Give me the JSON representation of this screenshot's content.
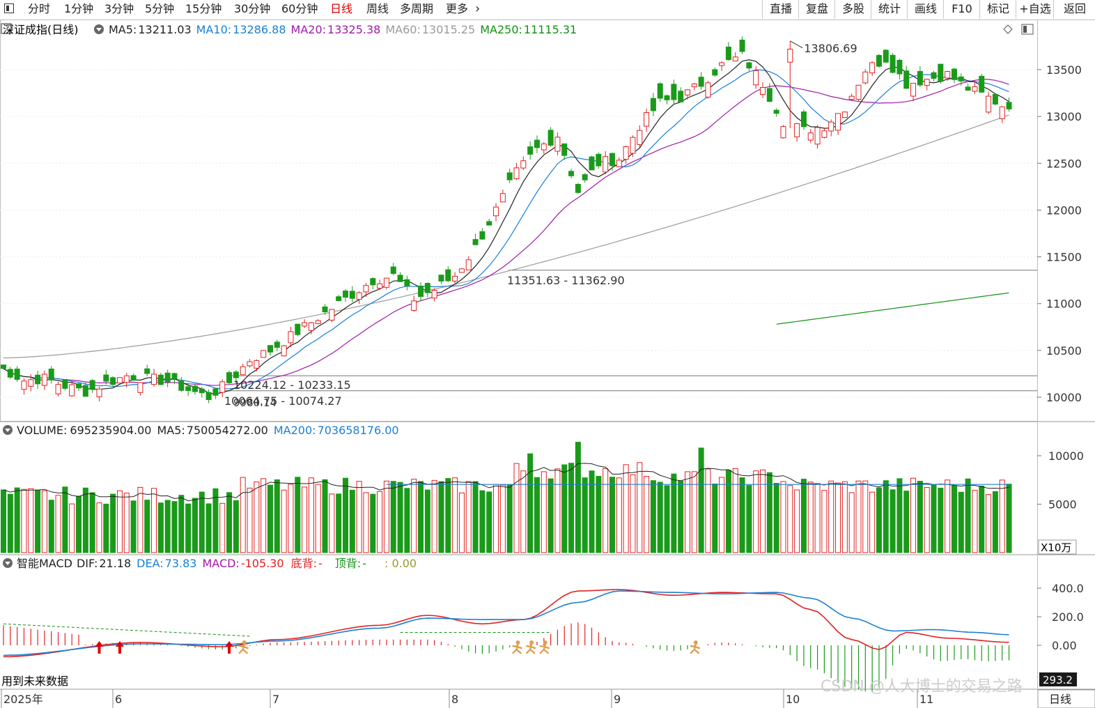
{
  "toolbar": {
    "left_tabs": [
      "分时",
      "1分钟",
      "3分钟",
      "5分钟",
      "15分钟",
      "30分钟",
      "60分钟",
      "日线",
      "周线",
      "多周期",
      "更多"
    ],
    "active_tab": "日线",
    "right_buttons": [
      "直播",
      "复盘",
      "多股",
      "统计",
      "画线",
      "F10",
      "标记",
      "+自选",
      "返回"
    ]
  },
  "price_panel": {
    "title": "深证成指(日线)",
    "ma_legend": [
      {
        "label": "MA5:",
        "value": "13211.03",
        "color": "#222222"
      },
      {
        "label": "MA10:",
        "value": "13286.88",
        "color": "#1a7fd4"
      },
      {
        "label": "MA20:",
        "value": "13325.38",
        "color": "#a01aa8"
      },
      {
        "label": "MA60:",
        "value": "13015.25",
        "color": "#9a9a9a"
      },
      {
        "label": "MA250:",
        "value": "11115.31",
        "color": "#119211"
      }
    ],
    "y_ticks": [
      "13500",
      "13000",
      "12500",
      "12000",
      "11500",
      "11000",
      "10500",
      "10000"
    ],
    "annotations": {
      "high": "13806.69",
      "gap1": "11351.63 - 11362.90",
      "gap2": "10224.12 - 10233.15",
      "gap3": "10064.75 - 10074.27",
      "low": "9980.14"
    }
  },
  "volume_panel": {
    "title": "VOLUME:",
    "value": "695235904.00",
    "ma5_label": "MA5:",
    "ma5_value": "750054272.00",
    "ma200_label": "MA200:",
    "ma200_value": "703658176.00",
    "y_ticks": [
      "10000",
      "5000"
    ],
    "unit": "X10万"
  },
  "macd_panel": {
    "title": "智能MACD",
    "dif_label": "DIF:",
    "dif_value": "21.18",
    "dea_label": "DEA:",
    "dea_value": "73.83",
    "macd_label": "MACD:",
    "macd_value": "-105.30",
    "bottom_div_label": "底背:",
    "bottom_div_value": "-",
    "top_div_label": "顶背:",
    "top_div_value": "-",
    "extra_value": ": 0.00",
    "y_ticks": [
      "400.0",
      "200.0",
      "0.00"
    ],
    "current_value": "293.2",
    "footnote": "用到未来数据"
  },
  "x_axis": {
    "labels": [
      "2025年",
      "6",
      "7",
      "8",
      "9",
      "10",
      "11"
    ],
    "period_label": "日线"
  },
  "watermark": "CSDN @人大博士的交易之路",
  "colors": {
    "up": "#e32020",
    "down": "#1a9a1a",
    "ma5": "#222222",
    "ma10": "#1a7fd4",
    "ma20": "#a01aa8",
    "ma60": "#9a9a9a",
    "ma250": "#119211"
  },
  "chart_data": {
    "type": "candlestick",
    "title": "深证成指(日线)",
    "x_range_labels": [
      "2025年",
      "6",
      "7",
      "8",
      "9",
      "10",
      "11"
    ],
    "y_range": [
      9900,
      13850
    ],
    "notable_points": {
      "high": 13806.69,
      "low": 9980.14
    },
    "close_path": [
      {
        "date": "2025-05",
        "close": 10300
      },
      {
        "date": "2025-05",
        "close": 10180
      },
      {
        "date": "2025-05",
        "close": 10200
      },
      {
        "date": "2025-05",
        "close": 10120
      },
      {
        "date": "2025-05",
        "close": 10060
      },
      {
        "date": "2025-06",
        "close": 10150
      },
      {
        "date": "2025-06",
        "close": 10230
      },
      {
        "date": "2025-06",
        "close": 10200
      },
      {
        "date": "2025-06",
        "close": 10170
      },
      {
        "date": "2025-06",
        "close": 10080
      },
      {
        "date": "2025-06",
        "close": 10000
      },
      {
        "date": "2025-06",
        "close": 10160
      },
      {
        "date": "2025-07",
        "close": 10400
      },
      {
        "date": "2025-07",
        "close": 10500
      },
      {
        "date": "2025-07",
        "close": 10650
      },
      {
        "date": "2025-07",
        "close": 10800
      },
      {
        "date": "2025-07",
        "close": 10950
      },
      {
        "date": "2025-07",
        "close": 11100
      },
      {
        "date": "2025-07",
        "close": 11250
      },
      {
        "date": "2025-07",
        "close": 11300
      },
      {
        "date": "2025-08",
        "close": 11050
      },
      {
        "date": "2025-08",
        "close": 11150
      },
      {
        "date": "2025-08",
        "close": 11300
      },
      {
        "date": "2025-08",
        "close": 11600
      },
      {
        "date": "2025-08",
        "close": 12000
      },
      {
        "date": "2025-08",
        "close": 12400
      },
      {
        "date": "2025-08",
        "close": 12650
      },
      {
        "date": "2025-08",
        "close": 12800
      },
      {
        "date": "2025-09",
        "close": 12200
      },
      {
        "date": "2025-09",
        "close": 12500
      },
      {
        "date": "2025-09",
        "close": 12550
      },
      {
        "date": "2025-09",
        "close": 12900
      },
      {
        "date": "2025-09",
        "close": 13150
      },
      {
        "date": "2025-09",
        "close": 13200
      },
      {
        "date": "2025-09",
        "close": 13350
      },
      {
        "date": "2025-09",
        "close": 13550
      },
      {
        "date": "2025-10",
        "close": 13650
      },
      {
        "date": "2025-10",
        "close": 13350
      },
      {
        "date": "2025-10",
        "close": 12950
      },
      {
        "date": "2025-10",
        "close": 12850
      },
      {
        "date": "2025-10",
        "close": 12900
      },
      {
        "date": "2025-10",
        "close": 13100
      },
      {
        "date": "2025-10",
        "close": 13500
      },
      {
        "date": "2025-10",
        "close": 13620
      },
      {
        "date": "2025-10",
        "close": 13350
      },
      {
        "date": "2025-11",
        "close": 13400
      },
      {
        "date": "2025-11",
        "close": 13450
      },
      {
        "date": "2025-11",
        "close": 13300
      },
      {
        "date": "2025-11",
        "close": 13200
      },
      {
        "date": "2025-11",
        "close": 13080
      }
    ],
    "series": [
      {
        "name": "MA5",
        "last": 13211.03
      },
      {
        "name": "MA10",
        "last": 13286.88
      },
      {
        "name": "MA20",
        "last": 13325.38
      },
      {
        "name": "MA60",
        "last": 13015.25
      },
      {
        "name": "MA250",
        "last": 11115.31
      }
    ]
  }
}
